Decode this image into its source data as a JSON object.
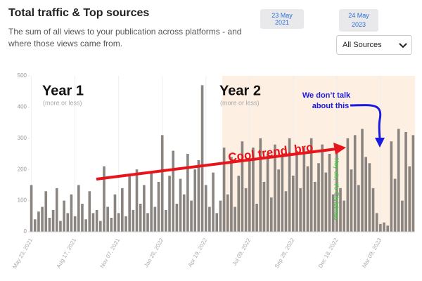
{
  "header": {
    "title": "Total traffic & Top sources",
    "subtitle": "The sum of all views to your publication across platforms - and where those views came from.",
    "start_date": "23 May 2021",
    "end_date": "24 May 2023",
    "source_filter": "All Sources"
  },
  "chart_data": {
    "type": "bar",
    "categories": [
      "May 23, 2021",
      null,
      null,
      null,
      null,
      null,
      null,
      null,
      null,
      null,
      null,
      null,
      "Aug 17, 2021",
      null,
      null,
      null,
      null,
      null,
      null,
      null,
      null,
      null,
      null,
      null,
      "Nov 07, 2021",
      null,
      null,
      null,
      null,
      null,
      null,
      null,
      null,
      null,
      null,
      null,
      "Jan 28, 2022",
      null,
      null,
      null,
      null,
      null,
      null,
      null,
      null,
      null,
      null,
      null,
      "Apr 19, 2022",
      null,
      null,
      null,
      null,
      null,
      null,
      null,
      null,
      null,
      null,
      null,
      "Jul 09, 2022",
      null,
      null,
      null,
      null,
      null,
      null,
      null,
      null,
      null,
      null,
      null,
      "Sep 28, 2022",
      null,
      null,
      null,
      null,
      null,
      null,
      null,
      null,
      null,
      null,
      null,
      "Dec 18, 2022",
      null,
      null,
      null,
      null,
      null,
      null,
      null,
      null,
      null,
      null,
      null,
      "Mar 09, 2023",
      null,
      null,
      null,
      null,
      null,
      null,
      null,
      null,
      null
    ],
    "values": [
      150,
      40,
      65,
      80,
      130,
      45,
      70,
      140,
      35,
      100,
      60,
      120,
      50,
      150,
      90,
      40,
      130,
      60,
      70,
      35,
      210,
      80,
      45,
      120,
      60,
      140,
      50,
      180,
      70,
      200,
      90,
      150,
      60,
      190,
      80,
      160,
      310,
      70,
      180,
      260,
      90,
      170,
      120,
      250,
      100,
      200,
      230,
      470,
      150,
      80,
      190,
      60,
      100,
      270,
      120,
      240,
      80,
      180,
      290,
      140,
      230,
      270,
      90,
      300,
      160,
      250,
      110,
      280,
      200,
      240,
      130,
      300,
      180,
      260,
      140,
      270,
      210,
      300,
      160,
      220,
      280,
      190,
      250,
      120,
      260,
      140,
      100,
      300,
      200,
      310,
      150,
      330,
      240,
      220,
      140,
      60,
      25,
      30,
      20,
      290,
      170,
      330,
      100,
      320,
      210,
      310
    ],
    "color": "#8a8580",
    "ylim": [
      0,
      500
    ],
    "yticks": [
      0,
      100,
      200,
      300,
      400,
      500
    ],
    "annotations": {
      "year1": "Year 1",
      "year1_note": "(more or less)",
      "year2": "Year 2",
      "year2_note": "(more or less)",
      "trend": "Cool trend, bro",
      "dip_line1": "We don’t talk",
      "dip_line2": "about this",
      "christmas": "Hey sis, it’s Christmas"
    }
  }
}
